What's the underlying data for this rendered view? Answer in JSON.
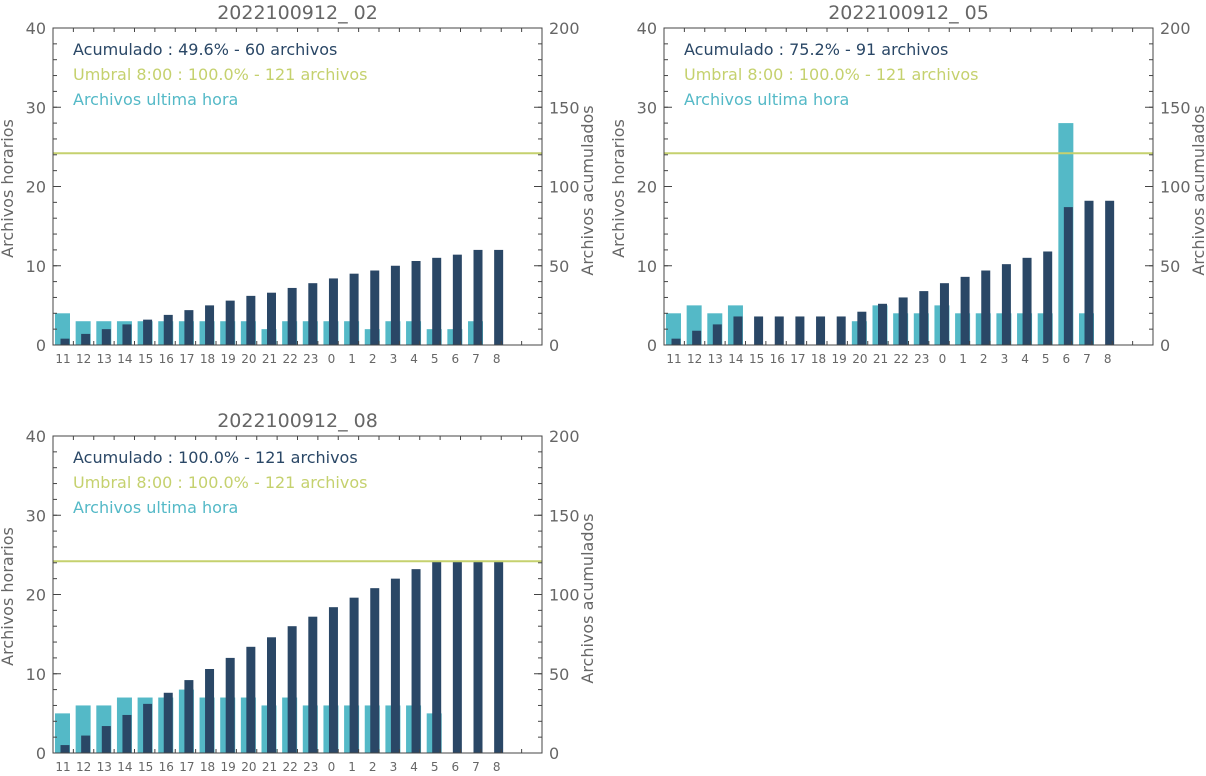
{
  "colors": {
    "hourly": "#54b9c7",
    "cumulative": "#2a4766",
    "threshold": "#c5d16e",
    "title": "#666666",
    "axis": "#444444"
  },
  "chart_data": [
    {
      "type": "bar",
      "title": "2022100912_ 02",
      "ylabel": "Archivos horarios",
      "y2label": "Archivos acumulados",
      "ylim": [
        0,
        40
      ],
      "y2lim": [
        0,
        200
      ],
      "yticks": [
        "0",
        "10",
        "20",
        "30",
        "40"
      ],
      "y2ticks": [
        "0",
        "50",
        "100",
        "150",
        "200"
      ],
      "categories": [
        "11",
        "12",
        "13",
        "14",
        "15",
        "16",
        "17",
        "18",
        "19",
        "20",
        "21",
        "22",
        "23",
        "0",
        "1",
        "2",
        "3",
        "4",
        "5",
        "6",
        "7",
        "8"
      ],
      "legend": [
        {
          "text": "Acumulado : 49.6% - 60 archivos",
          "color": "cumulative"
        },
        {
          "text": "Umbral 8:00 : 100.0% - 121 archivos",
          "color": "threshold"
        },
        {
          "text": "Archivos ultima hora",
          "color": "hourly"
        }
      ],
      "threshold": 121,
      "series": [
        {
          "name": "Archivos ultima hora",
          "axis": "left",
          "values": [
            4,
            3,
            3,
            3,
            3,
            3,
            3,
            3,
            3,
            3,
            2,
            3,
            3,
            3,
            3,
            2,
            3,
            3,
            2,
            2,
            3,
            0
          ]
        },
        {
          "name": "Acumulado",
          "axis": "right",
          "values": [
            4,
            7,
            10,
            13,
            16,
            19,
            22,
            25,
            28,
            31,
            33,
            36,
            39,
            42,
            45,
            47,
            50,
            53,
            55,
            57,
            60,
            60
          ]
        }
      ]
    },
    {
      "type": "bar",
      "title": "2022100912_ 05",
      "ylabel": "Archivos horarios",
      "y2label": "Archivos acumulados",
      "ylim": [
        0,
        40
      ],
      "y2lim": [
        0,
        200
      ],
      "yticks": [
        "0",
        "10",
        "20",
        "30",
        "40"
      ],
      "y2ticks": [
        "0",
        "50",
        "100",
        "150",
        "200"
      ],
      "categories": [
        "11",
        "12",
        "13",
        "14",
        "15",
        "16",
        "17",
        "18",
        "19",
        "20",
        "21",
        "22",
        "23",
        "0",
        "1",
        "2",
        "3",
        "4",
        "5",
        "6",
        "7",
        "8"
      ],
      "legend": [
        {
          "text": "Acumulado : 75.2% - 91 archivos",
          "color": "cumulative"
        },
        {
          "text": "Umbral 8:00 : 100.0% - 121 archivos",
          "color": "threshold"
        },
        {
          "text": "Archivos ultima hora",
          "color": "hourly"
        }
      ],
      "threshold": 121,
      "series": [
        {
          "name": "Archivos ultima hora",
          "axis": "left",
          "values": [
            4,
            5,
            4,
            5,
            0,
            0,
            0,
            0,
            0,
            3,
            5,
            4,
            4,
            5,
            4,
            4,
            4,
            4,
            4,
            28,
            4,
            0
          ]
        },
        {
          "name": "Acumulado",
          "axis": "right",
          "values": [
            4,
            9,
            13,
            18,
            18,
            18,
            18,
            18,
            18,
            21,
            26,
            30,
            34,
            39,
            43,
            47,
            51,
            55,
            59,
            87,
            91,
            91
          ]
        }
      ]
    },
    {
      "type": "bar",
      "title": "2022100912_ 08",
      "ylabel": "Archivos horarios",
      "y2label": "Archivos acumulados",
      "ylim": [
        0,
        40
      ],
      "y2lim": [
        0,
        200
      ],
      "yticks": [
        "0",
        "10",
        "20",
        "30",
        "40"
      ],
      "y2ticks": [
        "0",
        "50",
        "100",
        "150",
        "200"
      ],
      "categories": [
        "11",
        "12",
        "13",
        "14",
        "15",
        "16",
        "17",
        "18",
        "19",
        "20",
        "21",
        "22",
        "23",
        "0",
        "1",
        "2",
        "3",
        "4",
        "5",
        "6",
        "7",
        "8"
      ],
      "legend": [
        {
          "text": "Acumulado : 100.0% - 121 archivos",
          "color": "cumulative"
        },
        {
          "text": "Umbral 8:00 : 100.0% - 121 archivos",
          "color": "threshold"
        },
        {
          "text": "Archivos ultima hora",
          "color": "hourly"
        }
      ],
      "threshold": 121,
      "series": [
        {
          "name": "Archivos ultima hora",
          "axis": "left",
          "values": [
            5,
            6,
            6,
            7,
            7,
            7,
            8,
            7,
            7,
            7,
            6,
            7,
            6,
            6,
            6,
            6,
            6,
            6,
            5,
            0,
            0,
            0
          ]
        },
        {
          "name": "Acumulado",
          "axis": "right",
          "values": [
            5,
            11,
            17,
            24,
            31,
            38,
            46,
            53,
            60,
            67,
            73,
            80,
            86,
            92,
            98,
            104,
            110,
            116,
            121,
            121,
            121,
            121
          ]
        }
      ]
    }
  ]
}
